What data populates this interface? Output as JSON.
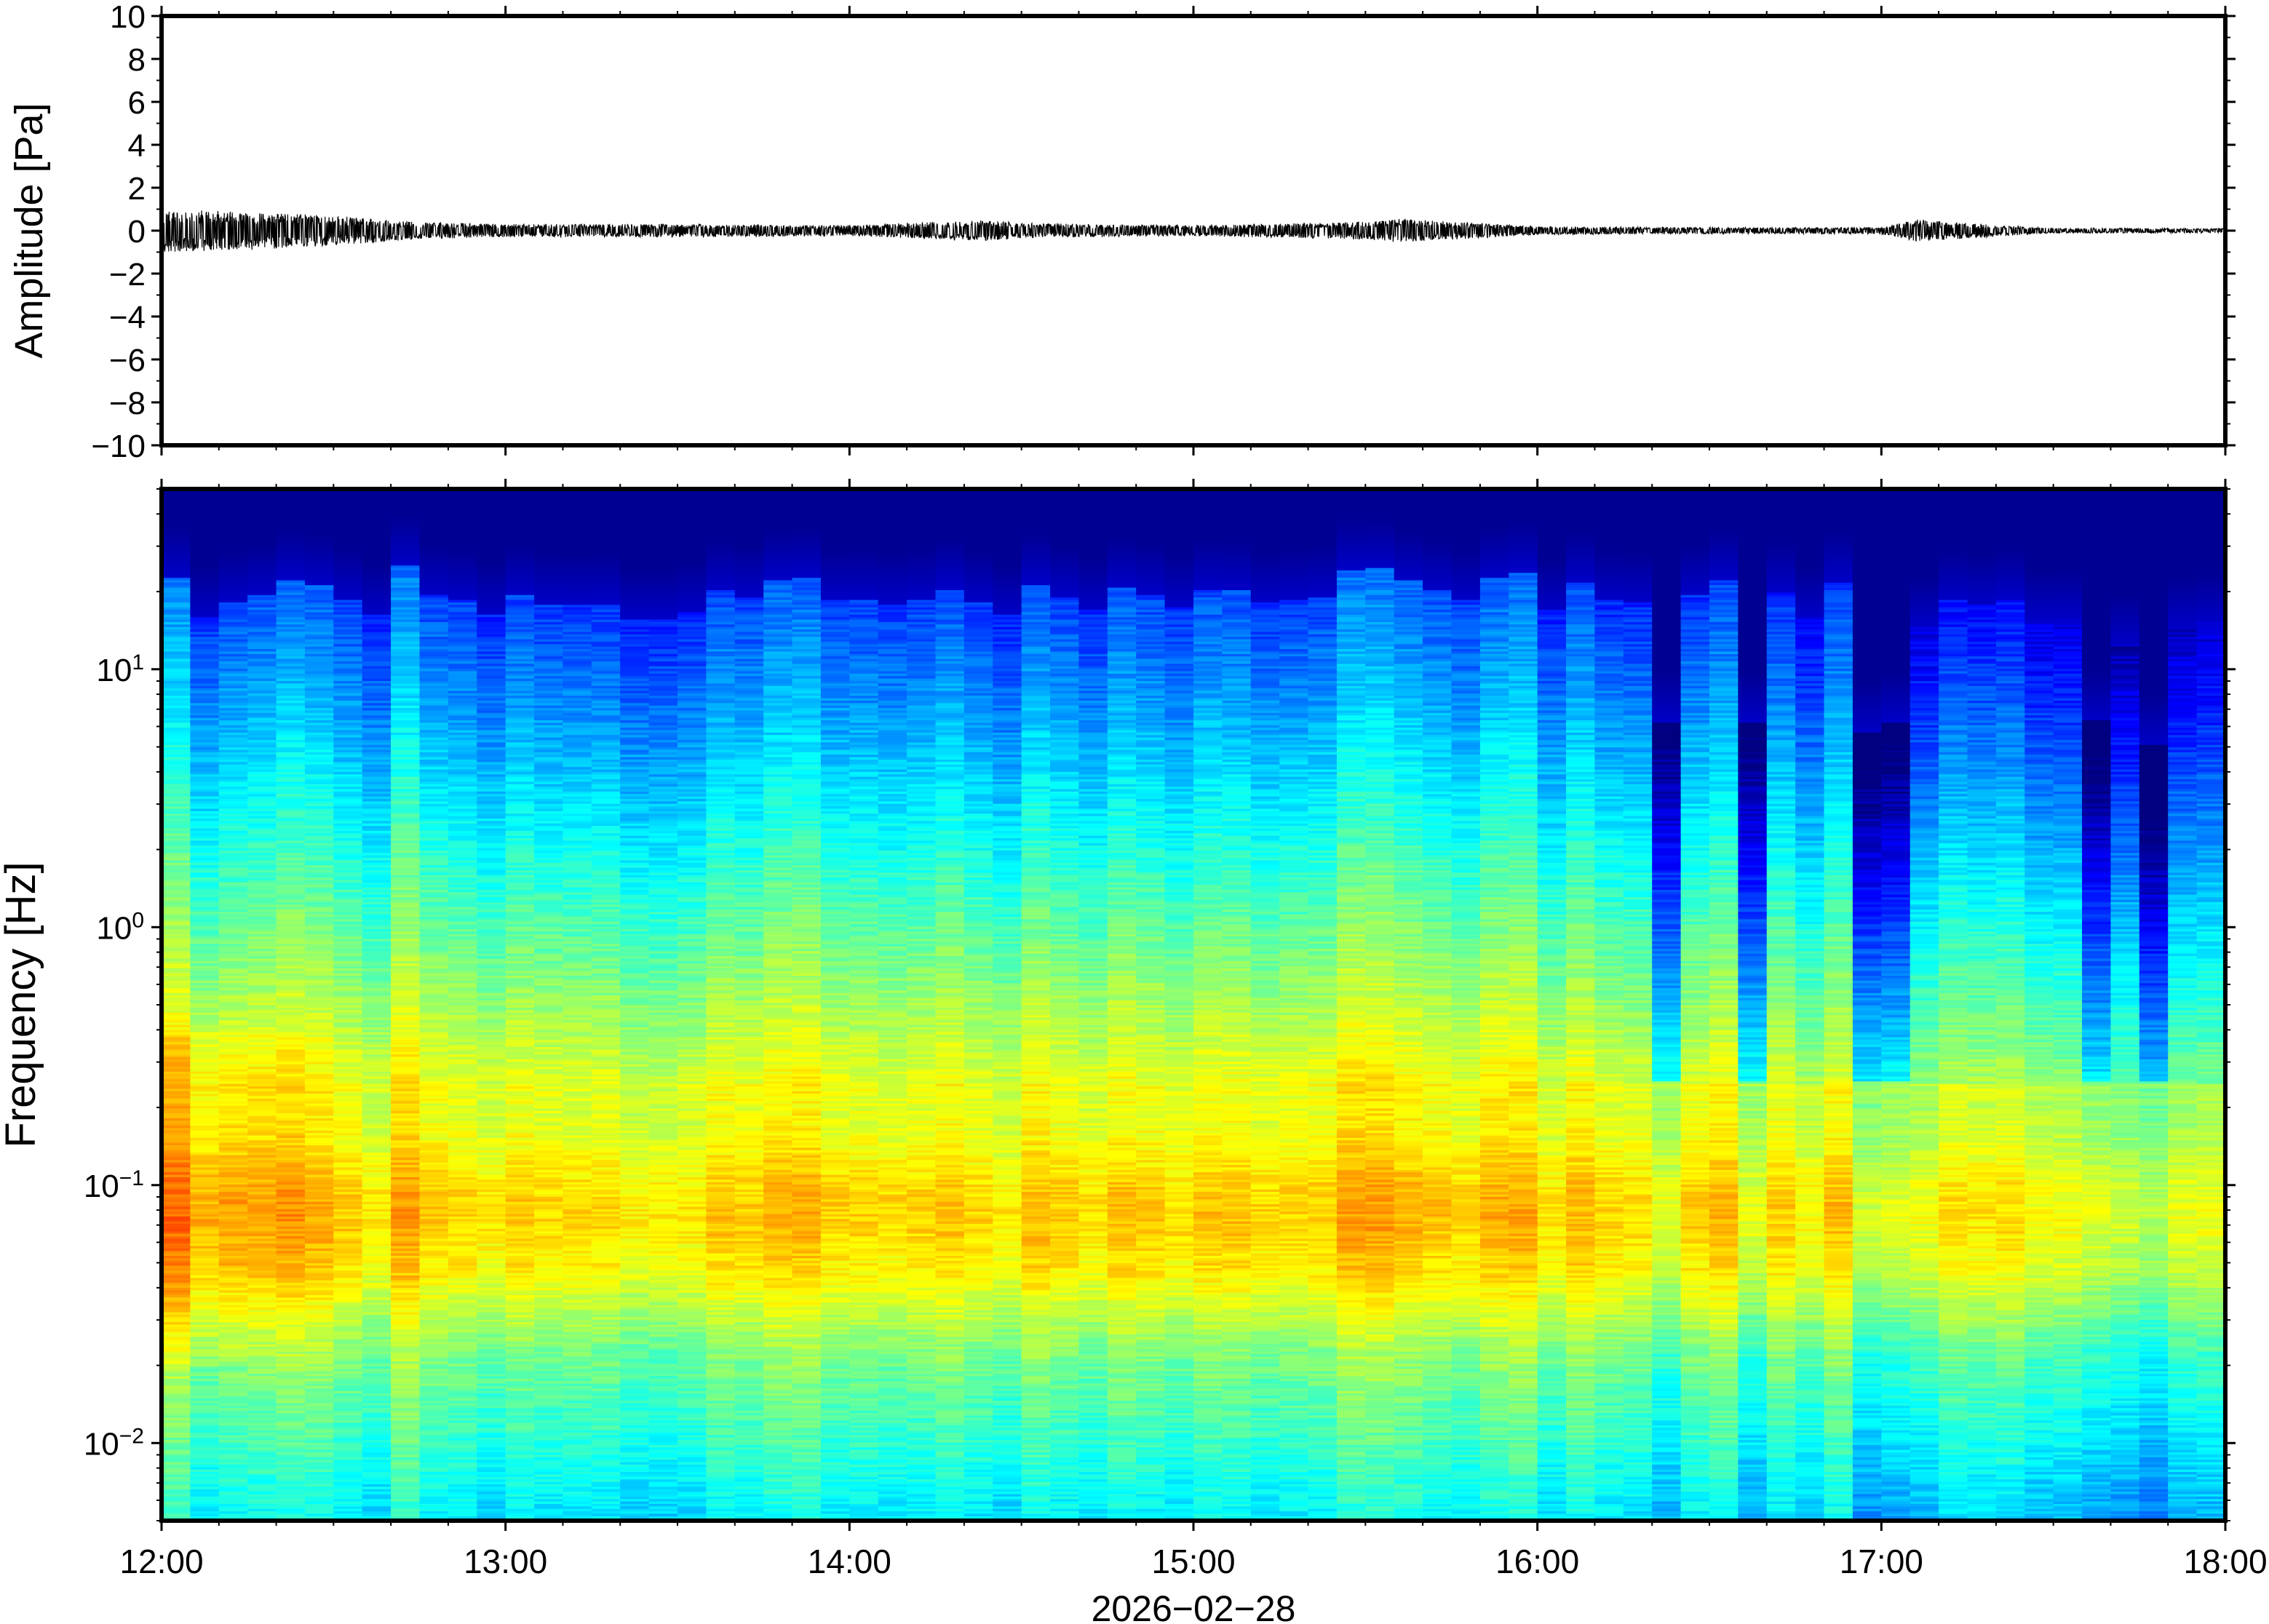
{
  "chart_data": [
    {
      "type": "line",
      "panel": "waveform",
      "title": "",
      "xlabel": "",
      "ylabel": "Amplitude [Pa]",
      "xlim": [
        "12:00",
        "18:00"
      ],
      "ylim": [
        -10,
        10
      ],
      "yticks": [
        -10,
        -8,
        -6,
        -4,
        -2,
        0,
        2,
        4,
        6,
        8,
        10
      ],
      "ytick_labels": [
        "−10",
        "−8",
        "−6",
        "−4",
        "−2",
        "0",
        "2",
        "4",
        "6",
        "8",
        "10"
      ],
      "grid": false,
      "line_color": "#000000",
      "envelope": {
        "time_hours": [
          12.0,
          12.25,
          12.5,
          12.75,
          13.0,
          13.5,
          14.0,
          14.4,
          14.5,
          15.0,
          15.5,
          15.6,
          16.0,
          16.5,
          17.0,
          17.1,
          17.5,
          18.0
        ],
        "max_abs_pa": [
          1.0,
          0.9,
          0.7,
          0.4,
          0.3,
          0.3,
          0.25,
          0.5,
          0.35,
          0.25,
          0.4,
          0.55,
          0.2,
          0.15,
          0.15,
          0.5,
          0.12,
          0.1
        ]
      }
    },
    {
      "type": "heatmap",
      "panel": "spectrogram",
      "title": "",
      "xlabel": "2026−02−28",
      "ylabel": "Frequency [Hz]",
      "xlim": [
        "12:00",
        "18:00"
      ],
      "xtick_labels": [
        "12:00",
        "13:00",
        "14:00",
        "15:00",
        "16:00",
        "17:00",
        "18:00"
      ],
      "ylim": [
        0.005,
        50
      ],
      "yscale": "log",
      "ytick_labels": [
        {
          "base": "10",
          "exp": "−2"
        },
        {
          "base": "10",
          "exp": "−1"
        },
        {
          "base": "10",
          "exp": "0"
        },
        {
          "base": "10",
          "exp": "1"
        }
      ],
      "colormap": "jet",
      "colormap_stops": [
        "#000080",
        "#0000ff",
        "#0080ff",
        "#00ffff",
        "#80ff80",
        "#ffff00",
        "#ff8000",
        "#ff0000"
      ],
      "features": {
        "peak_band_hz": [
          0.05,
          0.25
        ],
        "quiet_top_above_hz": 20,
        "quiet_intervals_start_hours": [
          16.3,
          16.55,
          16.95,
          17.55,
          17.75
        ]
      }
    }
  ]
}
